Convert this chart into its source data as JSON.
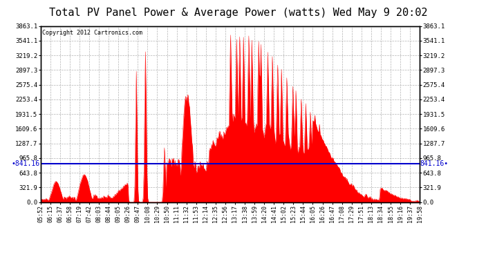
{
  "title": "Total PV Panel Power & Average Power (watts) Wed May 9 20:02",
  "copyright": "Copyright 2012 Cartronics.com",
  "average_line": 841.16,
  "y_max": 3863.1,
  "y_ticks": [
    0.0,
    321.9,
    643.8,
    965.8,
    1287.7,
    1609.6,
    1931.5,
    2253.4,
    2575.4,
    2897.3,
    3219.2,
    3541.1,
    3863.1
  ],
  "x_labels": [
    "05:52",
    "06:15",
    "06:37",
    "06:58",
    "07:19",
    "07:42",
    "08:03",
    "08:44",
    "09:05",
    "09:26",
    "09:47",
    "10:08",
    "10:29",
    "10:50",
    "11:11",
    "11:32",
    "11:53",
    "12:14",
    "12:35",
    "12:56",
    "13:17",
    "13:38",
    "13:59",
    "14:20",
    "14:41",
    "15:02",
    "15:23",
    "15:44",
    "16:05",
    "16:26",
    "16:47",
    "17:08",
    "17:29",
    "17:51",
    "18:13",
    "18:34",
    "18:55",
    "19:16",
    "19:37",
    "19:58"
  ],
  "bg_color": "#ffffff",
  "fill_color": "#ff0000",
  "line_color": "#0000cc",
  "grid_color": "#aaaaaa",
  "border_color": "#000000",
  "title_fontsize": 11,
  "tick_fontsize": 6.5,
  "avg_label_fontsize": 7,
  "copyright_fontsize": 6
}
